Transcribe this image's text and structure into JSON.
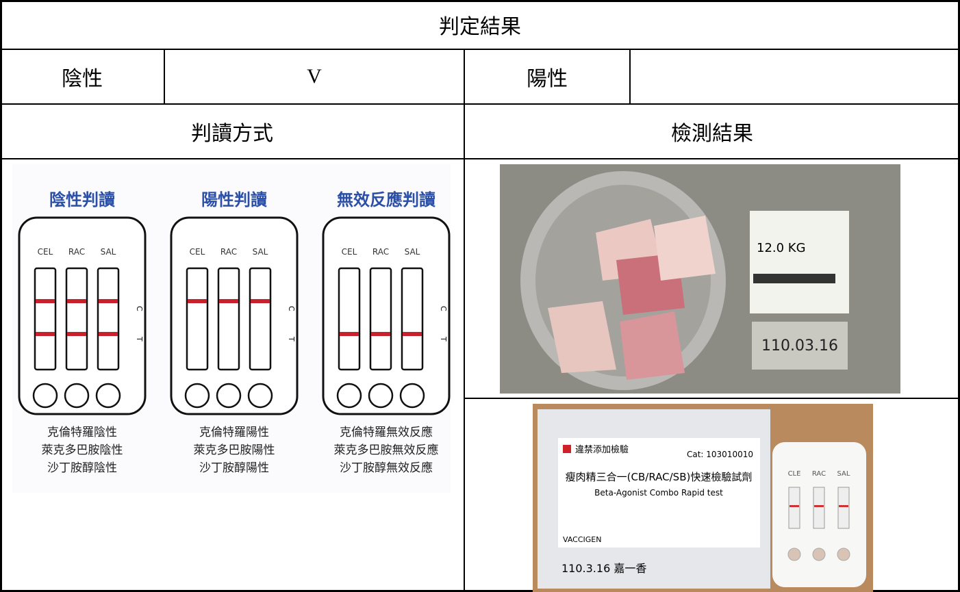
{
  "header": {
    "title": "判定結果"
  },
  "result": {
    "negative_label": "陰性",
    "negative_mark": "V",
    "positive_label": "陽性"
  },
  "sections": {
    "method": "判讀方式",
    "result": "檢測結果"
  },
  "diagram": {
    "panels": [
      {
        "title": "陰性判讀",
        "strips": [
          "CEL",
          "RAC",
          "SAL"
        ],
        "c": "C",
        "t": "T",
        "captions": [
          "克倫特羅陰性",
          "萊克多巴胺陰性",
          "沙丁胺醇陰性"
        ]
      },
      {
        "title": "陽性判讀",
        "strips": [
          "CEL",
          "RAC",
          "SAL"
        ],
        "c": "C",
        "t": "T",
        "captions": [
          "克倫特羅陽性",
          "萊克多巴胺陽性",
          "沙丁胺醇陽性"
        ]
      },
      {
        "title": "無效反應判讀",
        "strips": [
          "CEL",
          "RAC",
          "SAL"
        ],
        "c": "C",
        "t": "T",
        "captions": [
          "克倫特羅無效反應",
          "萊克多巴胺無效反應",
          "沙丁胺醇無效反應"
        ]
      }
    ]
  },
  "photos": {
    "sample": {
      "weight": "12.0 KG",
      "date_card": "110.03.16"
    },
    "kit": {
      "label": "違禁添加檢驗",
      "cat": "Cat: 103010010",
      "name": "瘦肉精三合一(CB/RAC/SB)快速檢驗試劑",
      "name_en": "Beta-Agonist Combo Rapid test",
      "brand": "VACCIGEN",
      "handwriting": "110.3.16 嘉一香",
      "cassette_labels": [
        "CLE",
        "RAC",
        "SAL"
      ]
    }
  }
}
